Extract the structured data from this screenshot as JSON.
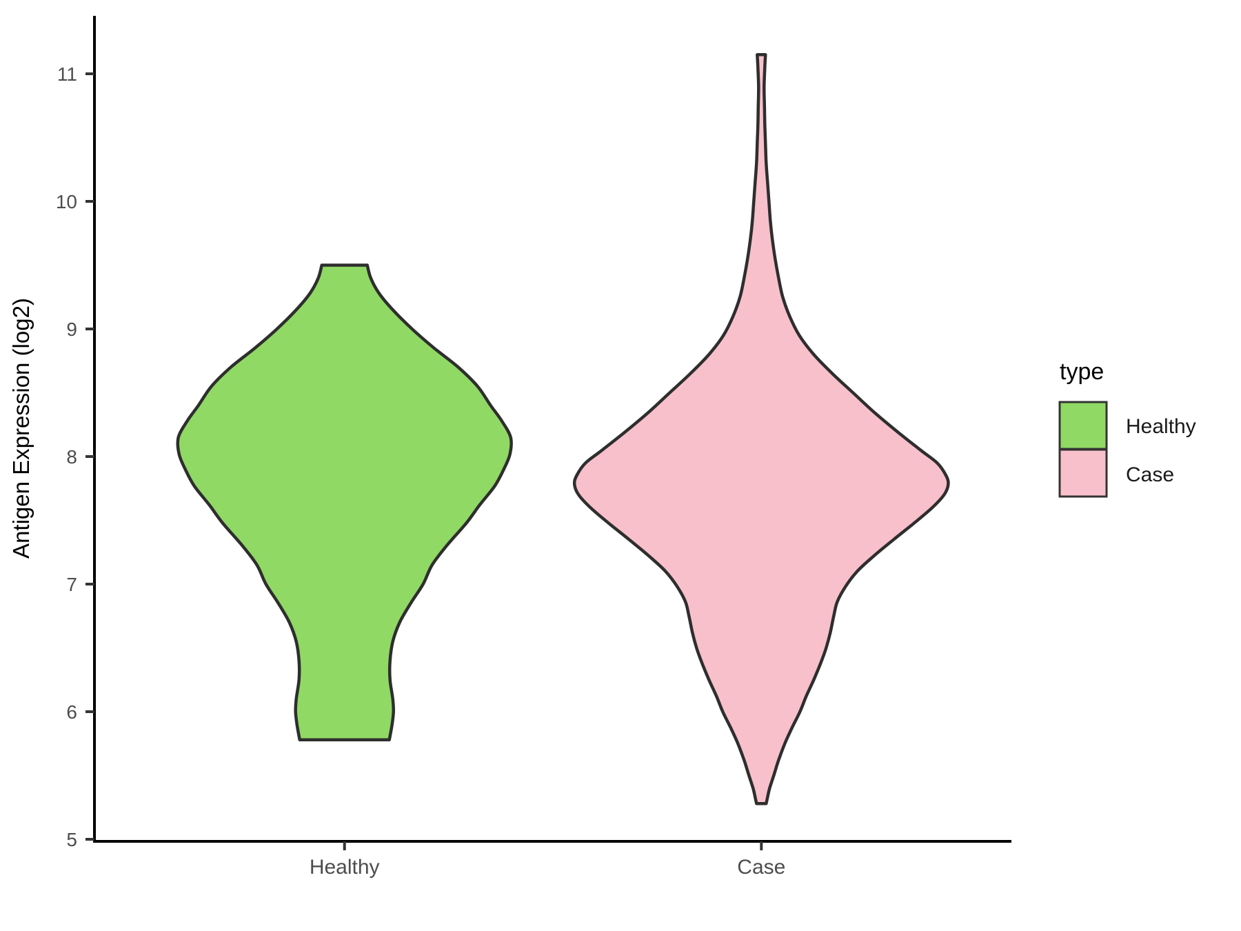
{
  "chart_data": {
    "type": "violin",
    "title": "",
    "xlabel": "",
    "ylabel": "Antigen Expression (log2)",
    "categories": [
      "Healthy",
      "Case"
    ],
    "x_positions": [
      0.2727,
      0.7273
    ],
    "y_ticks": [
      5,
      6,
      7,
      8,
      9,
      10,
      11
    ],
    "y_tick_labels": [
      "5",
      "6",
      "7",
      "8",
      "9",
      "10",
      "11"
    ],
    "ylim": [
      4.98,
      11.46
    ],
    "grid": "off",
    "colors": {
      "outline": "#2E2E2E",
      "axis_line": "#000000",
      "tick_mark": "#333333",
      "tick_text": "#4D4D4D"
    },
    "legend": {
      "title": "type",
      "position": "right",
      "entries": [
        {
          "label": "Healthy",
          "color": "#90D964"
        },
        {
          "label": "Case",
          "color": "#F8C0CB"
        }
      ]
    },
    "series": [
      {
        "name": "Healthy",
        "fill": "#90D964",
        "x_frac": 0.2727,
        "value_range": [
          5.78,
          9.5
        ],
        "peak_value": 8.15,
        "profile": [
          [
            9.5,
            33
          ],
          [
            9.4,
            38
          ],
          [
            9.28,
            50
          ],
          [
            9.15,
            70
          ],
          [
            9.0,
            98
          ],
          [
            8.85,
            130
          ],
          [
            8.7,
            165
          ],
          [
            8.55,
            193
          ],
          [
            8.4,
            212
          ],
          [
            8.28,
            228
          ],
          [
            8.15,
            241
          ],
          [
            8.02,
            240
          ],
          [
            7.9,
            231
          ],
          [
            7.77,
            218
          ],
          [
            7.62,
            196
          ],
          [
            7.48,
            177
          ],
          [
            7.3,
            148
          ],
          [
            7.15,
            127
          ],
          [
            7.0,
            114
          ],
          [
            6.85,
            96
          ],
          [
            6.7,
            80
          ],
          [
            6.55,
            70
          ],
          [
            6.4,
            66
          ],
          [
            6.25,
            66
          ],
          [
            6.1,
            70
          ],
          [
            6.0,
            71
          ],
          [
            5.9,
            69
          ],
          [
            5.78,
            65
          ]
        ]
      },
      {
        "name": "Case",
        "fill": "#F8C0CB",
        "x_frac": 0.7273,
        "value_range": [
          5.28,
          11.15
        ],
        "peak_value": 7.8,
        "profile": [
          [
            11.15,
            6
          ],
          [
            11.05,
            5
          ],
          [
            10.9,
            4
          ],
          [
            10.75,
            4.5
          ],
          [
            10.6,
            5
          ],
          [
            10.45,
            6
          ],
          [
            10.3,
            7
          ],
          [
            10.15,
            9
          ],
          [
            10.0,
            11
          ],
          [
            9.85,
            13
          ],
          [
            9.7,
            16
          ],
          [
            9.55,
            20
          ],
          [
            9.4,
            25
          ],
          [
            9.25,
            31
          ],
          [
            9.1,
            41
          ],
          [
            8.95,
            55
          ],
          [
            8.8,
            76
          ],
          [
            8.65,
            103
          ],
          [
            8.5,
            133
          ],
          [
            8.35,
            163
          ],
          [
            8.2,
            196
          ],
          [
            8.05,
            231
          ],
          [
            7.95,
            255
          ],
          [
            7.85,
            268
          ],
          [
            7.78,
            271
          ],
          [
            7.7,
            265
          ],
          [
            7.6,
            248
          ],
          [
            7.48,
            222
          ],
          [
            7.35,
            192
          ],
          [
            7.22,
            163
          ],
          [
            7.1,
            139
          ],
          [
            6.98,
            122
          ],
          [
            6.86,
            110
          ],
          [
            6.75,
            105
          ],
          [
            6.62,
            100
          ],
          [
            6.5,
            94
          ],
          [
            6.38,
            86
          ],
          [
            6.25,
            76
          ],
          [
            6.12,
            65
          ],
          [
            6.0,
            56
          ],
          [
            5.88,
            45
          ],
          [
            5.75,
            34
          ],
          [
            5.62,
            25
          ],
          [
            5.5,
            18
          ],
          [
            5.4,
            12
          ],
          [
            5.33,
            9
          ],
          [
            5.28,
            7
          ]
        ]
      }
    ]
  }
}
